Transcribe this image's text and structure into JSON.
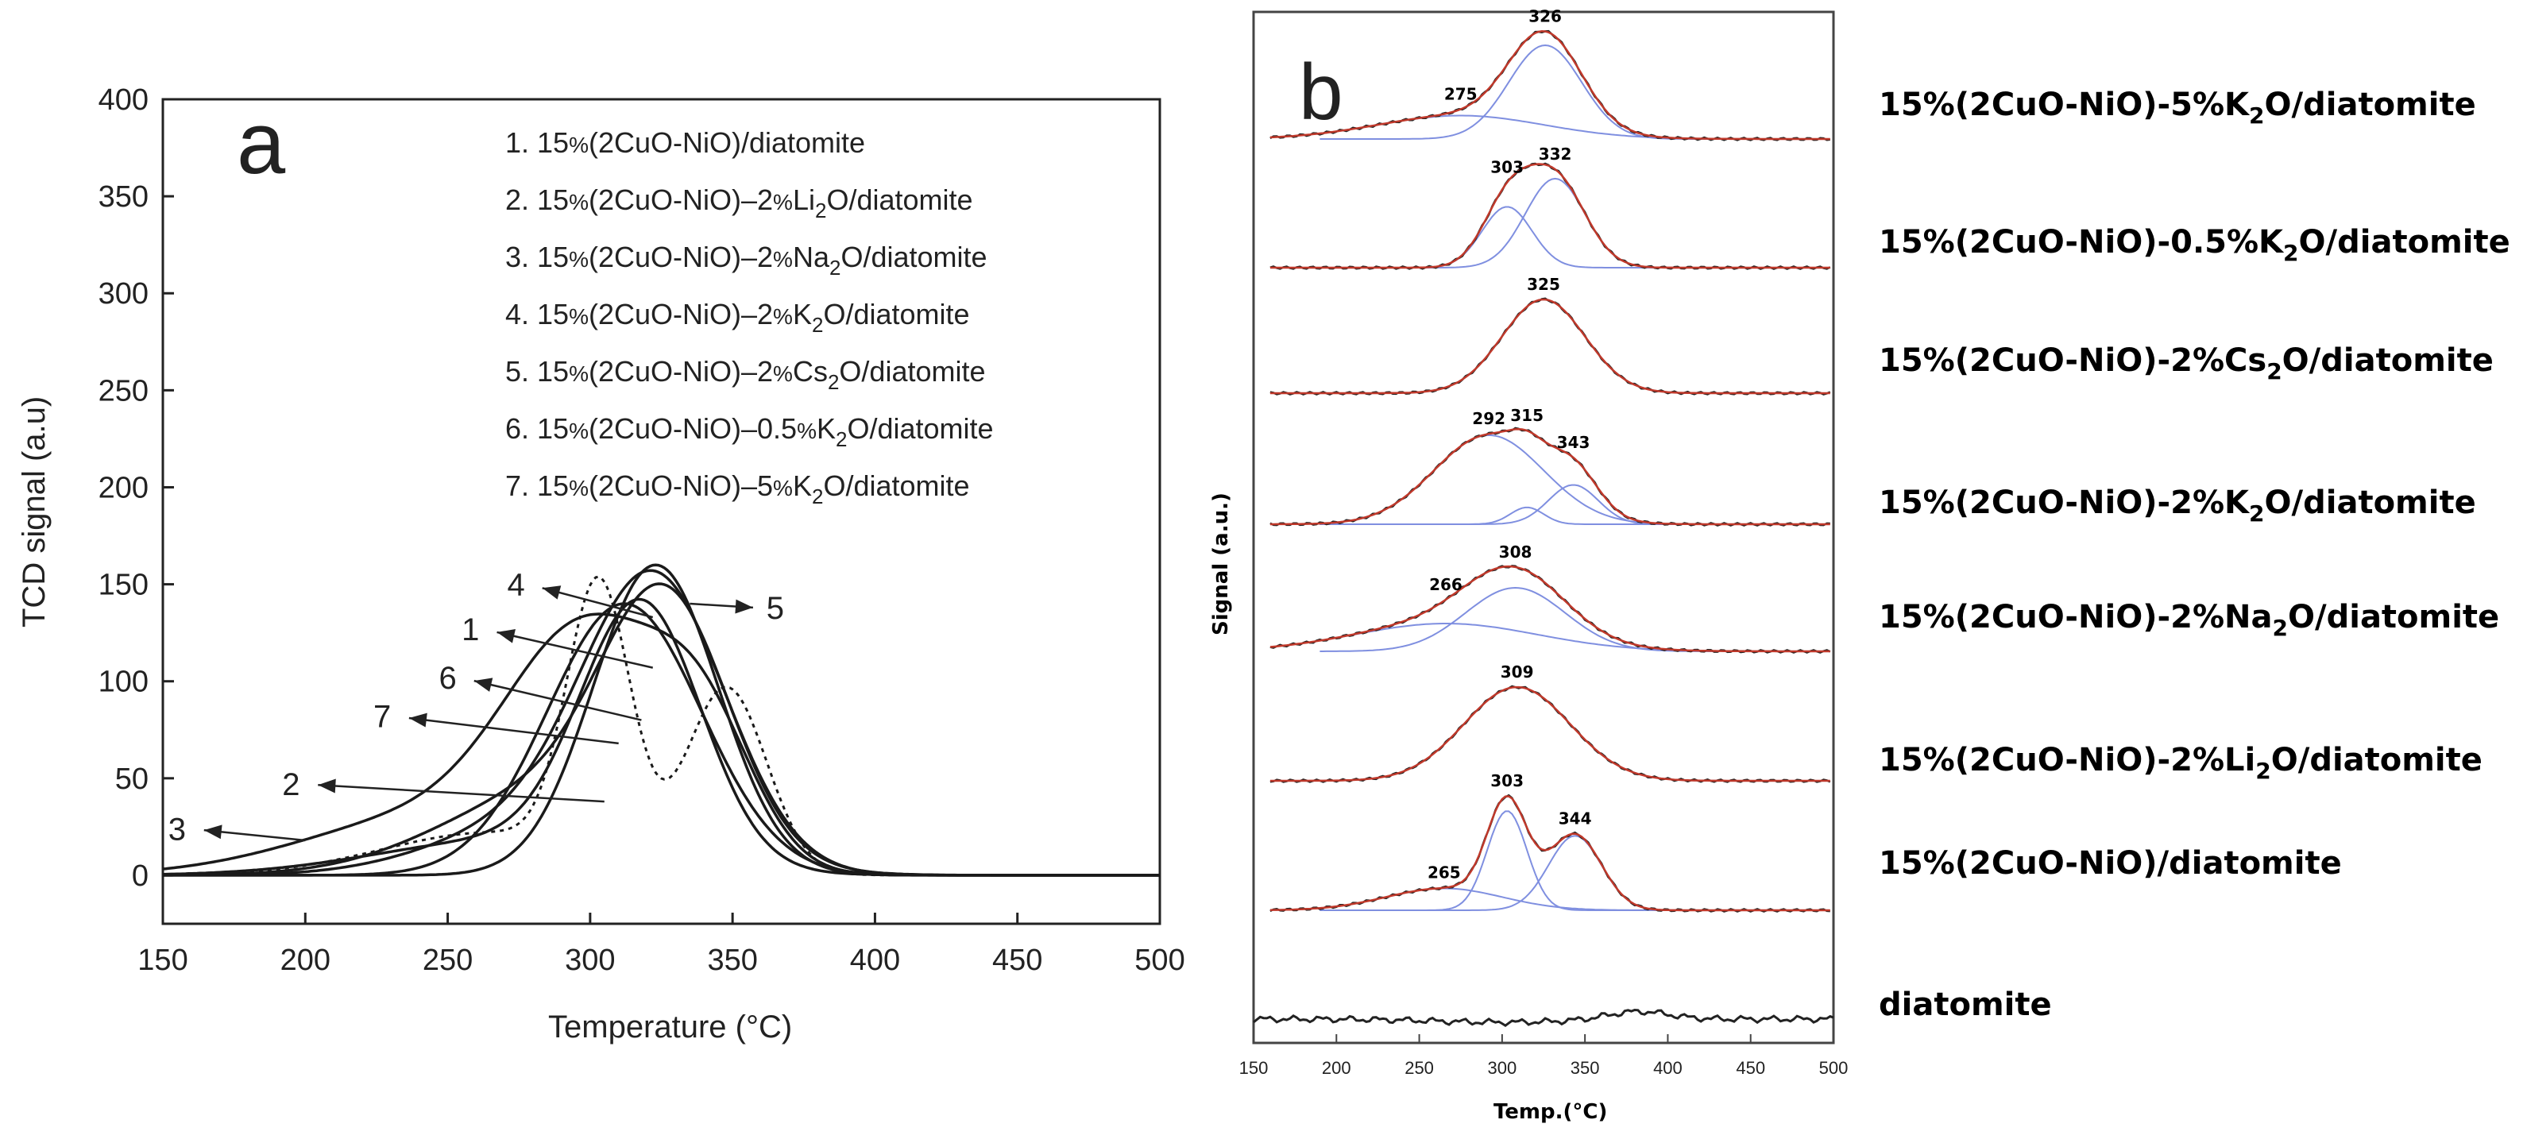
{
  "chart_data": [
    {
      "type": "line",
      "panel_label": "a",
      "title": "",
      "xlabel": "Temperature (",
      "xlabel_unit": "°C",
      "xlabel_close": ")",
      "ylabel": "TCD signal (a.u)",
      "xlim": [
        150,
        500
      ],
      "ylim": [
        -25,
        400
      ],
      "xticks": [
        150,
        200,
        250,
        300,
        350,
        400,
        450,
        500
      ],
      "yticks": [
        0,
        50,
        100,
        150,
        200,
        250,
        300,
        350,
        400
      ],
      "legend_position": "top-right",
      "legend": [
        {
          "num": "1.",
          "pre": "15",
          "pct": "%",
          "mid": "(2CuO-NiO)/diatomite",
          "sub": "",
          "post": ""
        },
        {
          "num": "2.",
          "pre": "15",
          "pct": "%",
          "mid": "(2CuO-NiO)–2",
          "pct2": "%",
          "ox": "Li",
          "sub": "2",
          "post": "O/diatomite"
        },
        {
          "num": "3.",
          "pre": "15",
          "pct": "%",
          "mid": "(2CuO-NiO)–2",
          "pct2": "%",
          "ox": "Na",
          "sub": "2",
          "post": "O/diatomite"
        },
        {
          "num": "4.",
          "pre": "15",
          "pct": "%",
          "mid": "(2CuO-NiO)–2",
          "pct2": "%",
          "ox": "K",
          "sub": "2",
          "post": "O/diatomite"
        },
        {
          "num": "5.",
          "pre": "15",
          "pct": "%",
          "mid": "(2CuO-NiO)–2",
          "pct2": "%",
          "ox": "Cs",
          "sub": "2",
          "post": "O/diatomite"
        },
        {
          "num": "6.",
          "pre": "15",
          "pct": "%",
          "mid": "(2CuO-NiO)–0.5",
          "pct2": "%",
          "ox": "K",
          "sub": "2",
          "post": "O/diatomite"
        },
        {
          "num": "7.",
          "pre": "15",
          "pct": "%",
          "mid": "(2CuO-NiO)–5",
          "pct2": "%",
          "ox": "K",
          "sub": "2",
          "post": "O/diatomite"
        }
      ],
      "series": [
        {
          "name": "1",
          "label": "1",
          "dashed": false,
          "components": [
            {
              "center": 312,
              "height": 140,
              "width": 27
            }
          ],
          "label_at": [
            258,
            127
          ],
          "arrow_to": [
            322,
            107
          ]
        },
        {
          "name": "2",
          "label": "2",
          "dashed": false,
          "components": [
            {
              "center": 270,
              "height": 18,
              "width": 45
            },
            {
              "center": 318,
              "height": 132,
              "width": 21
            }
          ],
          "label_at": [
            195,
            47
          ],
          "arrow_to": [
            305,
            38
          ]
        },
        {
          "name": "3",
          "label": "3",
          "dashed": true,
          "components": [
            {
              "center": 265,
              "height": 22,
              "width": 38
            },
            {
              "center": 303,
              "height": 140,
              "width": 11
            },
            {
              "center": 348,
              "height": 95,
              "width": 14
            }
          ],
          "label_at": [
            155,
            24
          ],
          "arrow_to": [
            200,
            18
          ]
        },
        {
          "name": "4",
          "label": "4",
          "dashed": false,
          "components": [
            {
              "center": 245,
              "height": 30,
              "width": 45
            },
            {
              "center": 300,
              "height": 115,
              "width": 28
            },
            {
              "center": 340,
              "height": 60,
              "width": 18
            }
          ],
          "label_at": [
            274,
            150
          ],
          "arrow_to": [
            322,
            133
          ]
        },
        {
          "name": "5",
          "label": "5",
          "dashed": false,
          "components": [
            {
              "center": 323,
              "height": 160,
              "width": 22
            }
          ],
          "label_at": [
            365,
            138
          ],
          "arrow_to": [
            335,
            140
          ]
        },
        {
          "name": "6",
          "label": "6",
          "dashed": false,
          "components": [
            {
              "center": 280,
              "height": 25,
              "width": 35
            },
            {
              "center": 323,
              "height": 145,
              "width": 25
            }
          ],
          "label_at": [
            250,
            102
          ],
          "arrow_to": [
            318,
            80
          ]
        },
        {
          "name": "7",
          "label": "7",
          "dashed": false,
          "components": [
            {
              "center": 290,
              "height": 45,
              "width": 40
            },
            {
              "center": 327,
              "height": 120,
              "width": 22
            }
          ],
          "label_at": [
            227,
            82
          ],
          "arrow_to": [
            310,
            68
          ]
        }
      ]
    },
    {
      "type": "line",
      "panel_label": "b",
      "title": "",
      "xlabel": "Temp.(°C)",
      "ylabel": "Signal (a.u.)",
      "xlim": [
        150,
        500
      ],
      "xticks": [
        150,
        200,
        250,
        300,
        350,
        400,
        450,
        500
      ],
      "y_axis_ticks": false,
      "legend_position": "right",
      "series": [
        {
          "name": "15%(2CuO-NiO)-5%K2O/diatomite",
          "pre": "15%(2CuO-NiO)-5%K",
          "sub": "2",
          "post": "O/diatomite",
          "components": [
            {
              "center": 275,
              "height": 0.25,
              "width": 50
            },
            {
              "center": 326,
              "height": 1.0,
              "width": 22
            }
          ],
          "peak_labels": [
            {
              "x": 275,
              "text": "275"
            },
            {
              "x": 326,
              "text": "326"
            }
          ]
        },
        {
          "name": "15%(2CuO-NiO)-0.5%K2O/diatomite",
          "pre": "15%(2CuO-NiO)-0.5%K",
          "sub": "2",
          "post": "O/diatomite",
          "components": [
            {
              "center": 303,
              "height": 0.65,
              "width": 15
            },
            {
              "center": 332,
              "height": 0.95,
              "width": 18
            }
          ],
          "peak_labels": [
            {
              "x": 303,
              "text": "303"
            },
            {
              "x": 332,
              "text": "332"
            }
          ]
        },
        {
          "name": "15%(2CuO-NiO)-2%Cs2O/diatomite",
          "pre": "15%(2CuO-NiO)-2%Cs",
          "sub": "2",
          "post": "O/diatomite",
          "components": [
            {
              "center": 325,
              "height": 1.0,
              "width": 25
            }
          ],
          "peak_labels": [
            {
              "x": 325,
              "text": "325"
            }
          ]
        },
        {
          "name": "15%(2CuO-NiO)-2%K2O/diatomite",
          "pre": "15%(2CuO-NiO)-2%K",
          "sub": "2",
          "post": "O/diatomite",
          "components": [
            {
              "center": 292,
              "height": 0.95,
              "width": 33
            },
            {
              "center": 315,
              "height": 0.18,
              "width": 10
            },
            {
              "center": 343,
              "height": 0.42,
              "width": 15
            }
          ],
          "peak_labels": [
            {
              "x": 292,
              "text": "292"
            },
            {
              "x": 315,
              "text": "315"
            },
            {
              "x": 343,
              "text": "343"
            }
          ]
        },
        {
          "name": "15%(2CuO-NiO)-2%Na2O/diatomite",
          "pre": "15%(2CuO-NiO)-2%Na",
          "sub": "2",
          "post": "O/diatomite",
          "components": [
            {
              "center": 266,
              "height": 0.35,
              "width": 55
            },
            {
              "center": 308,
              "height": 0.8,
              "width": 30
            }
          ],
          "peak_labels": [
            {
              "x": 266,
              "text": "266"
            },
            {
              "x": 308,
              "text": "308"
            }
          ]
        },
        {
          "name": "15%(2CuO-NiO)-2%Li2O/diatomite",
          "pre": "15%(2CuO-NiO)-2%Li",
          "sub": "2",
          "post": "O/diatomite",
          "components": [
            {
              "center": 309,
              "height": 1.0,
              "width": 32
            }
          ],
          "peak_labels": [
            {
              "x": 309,
              "text": "309"
            }
          ]
        },
        {
          "name": "15%(2CuO-NiO)/diatomite",
          "pre": "15%(2CuO-NiO)/diatomite",
          "sub": "",
          "post": "",
          "components": [
            {
              "center": 265,
              "height": 0.22,
              "width": 35
            },
            {
              "center": 303,
              "height": 1.0,
              "width": 12
            },
            {
              "center": 344,
              "height": 0.75,
              "width": 16
            }
          ],
          "peak_labels": [
            {
              "x": 265,
              "text": "265"
            },
            {
              "x": 303,
              "text": "303"
            },
            {
              "x": 344,
              "text": "344"
            }
          ]
        },
        {
          "name": "diatomite",
          "pre": "diatomite",
          "sub": "",
          "post": "",
          "components": [
            {
              "center": 380,
              "height": 0.05,
              "width": 20
            }
          ],
          "peak_labels": []
        }
      ]
    }
  ],
  "colors": {
    "axis": "#222222",
    "curve_a": "#1a1a1a",
    "fit_total": "#c0392b",
    "fit_component": "#7f8fe0",
    "raw": "#222222"
  }
}
